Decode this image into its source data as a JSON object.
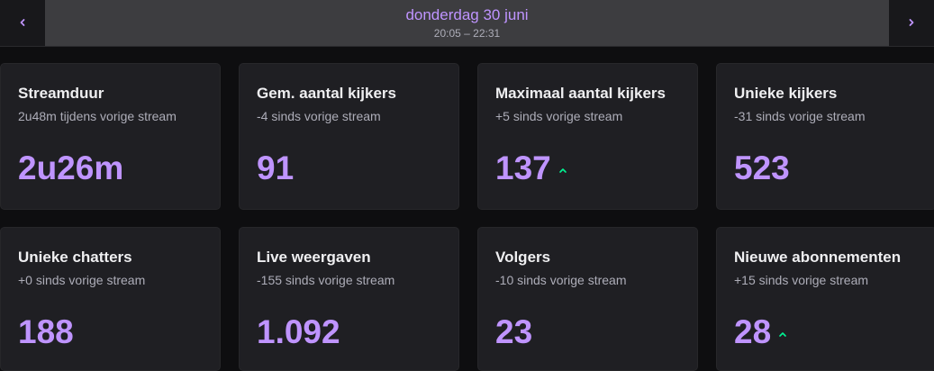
{
  "header": {
    "date": "donderdag 30 juni",
    "time_range": "20:05 – 22:31",
    "prev_icon": "chevron-left-icon",
    "next_icon": "chevron-right-icon"
  },
  "colors": {
    "accent": "#bf94ff",
    "trend_up": "#00f593",
    "background": "#0e0e10",
    "card": "#1f1f23"
  },
  "stats": [
    {
      "label": "Streamduur",
      "sub": "2u48m tijdens vorige stream",
      "value": "2u26m",
      "trend": ""
    },
    {
      "label": "Gem. aantal kijkers",
      "sub": "-4 sinds vorige stream",
      "value": "91",
      "trend": ""
    },
    {
      "label": "Maximaal aantal kijkers",
      "sub": "+5 sinds vorige stream",
      "value": "137",
      "trend": "up"
    },
    {
      "label": "Unieke kijkers",
      "sub": "-31 sinds vorige stream",
      "value": "523",
      "trend": ""
    },
    {
      "label": "Unieke chatters",
      "sub": "+0 sinds vorige stream",
      "value": "188",
      "trend": ""
    },
    {
      "label": "Live weergaven",
      "sub": "-155 sinds vorige stream",
      "value": "1.092",
      "trend": ""
    },
    {
      "label": "Volgers",
      "sub": "-10 sinds vorige stream",
      "value": "23",
      "trend": ""
    },
    {
      "label": "Nieuwe abonnementen",
      "sub": "+15 sinds vorige stream",
      "value": "28",
      "trend": "up"
    }
  ]
}
